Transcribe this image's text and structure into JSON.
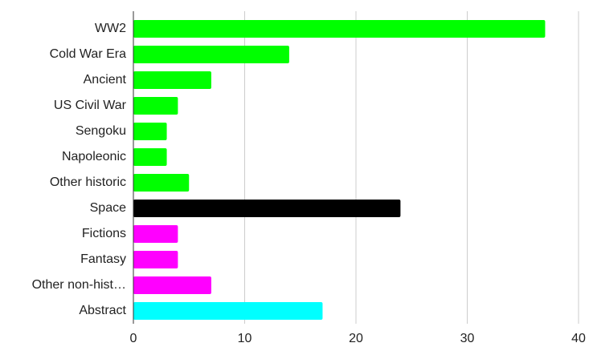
{
  "chart_data": {
    "type": "hbar",
    "categories": [
      "WW2",
      "Cold War Era",
      "Ancient",
      "US Civil War",
      "Sengoku",
      "Napoleonic",
      "Other historic",
      "Space",
      "Fictions",
      "Fantasy",
      "Other non-hist…",
      "Abstract"
    ],
    "values": [
      37,
      14,
      7,
      4,
      3,
      3,
      5,
      24,
      4,
      4,
      7,
      17
    ],
    "colors": [
      "#00ff00",
      "#00ff00",
      "#00ff00",
      "#00ff00",
      "#00ff00",
      "#00ff00",
      "#00ff00",
      "#000000",
      "#ff00ff",
      "#ff00ff",
      "#ff00ff",
      "#00ffff"
    ],
    "xlim": [
      0,
      40
    ],
    "xticks": [
      0,
      10,
      20,
      30,
      40
    ],
    "grid": true
  }
}
